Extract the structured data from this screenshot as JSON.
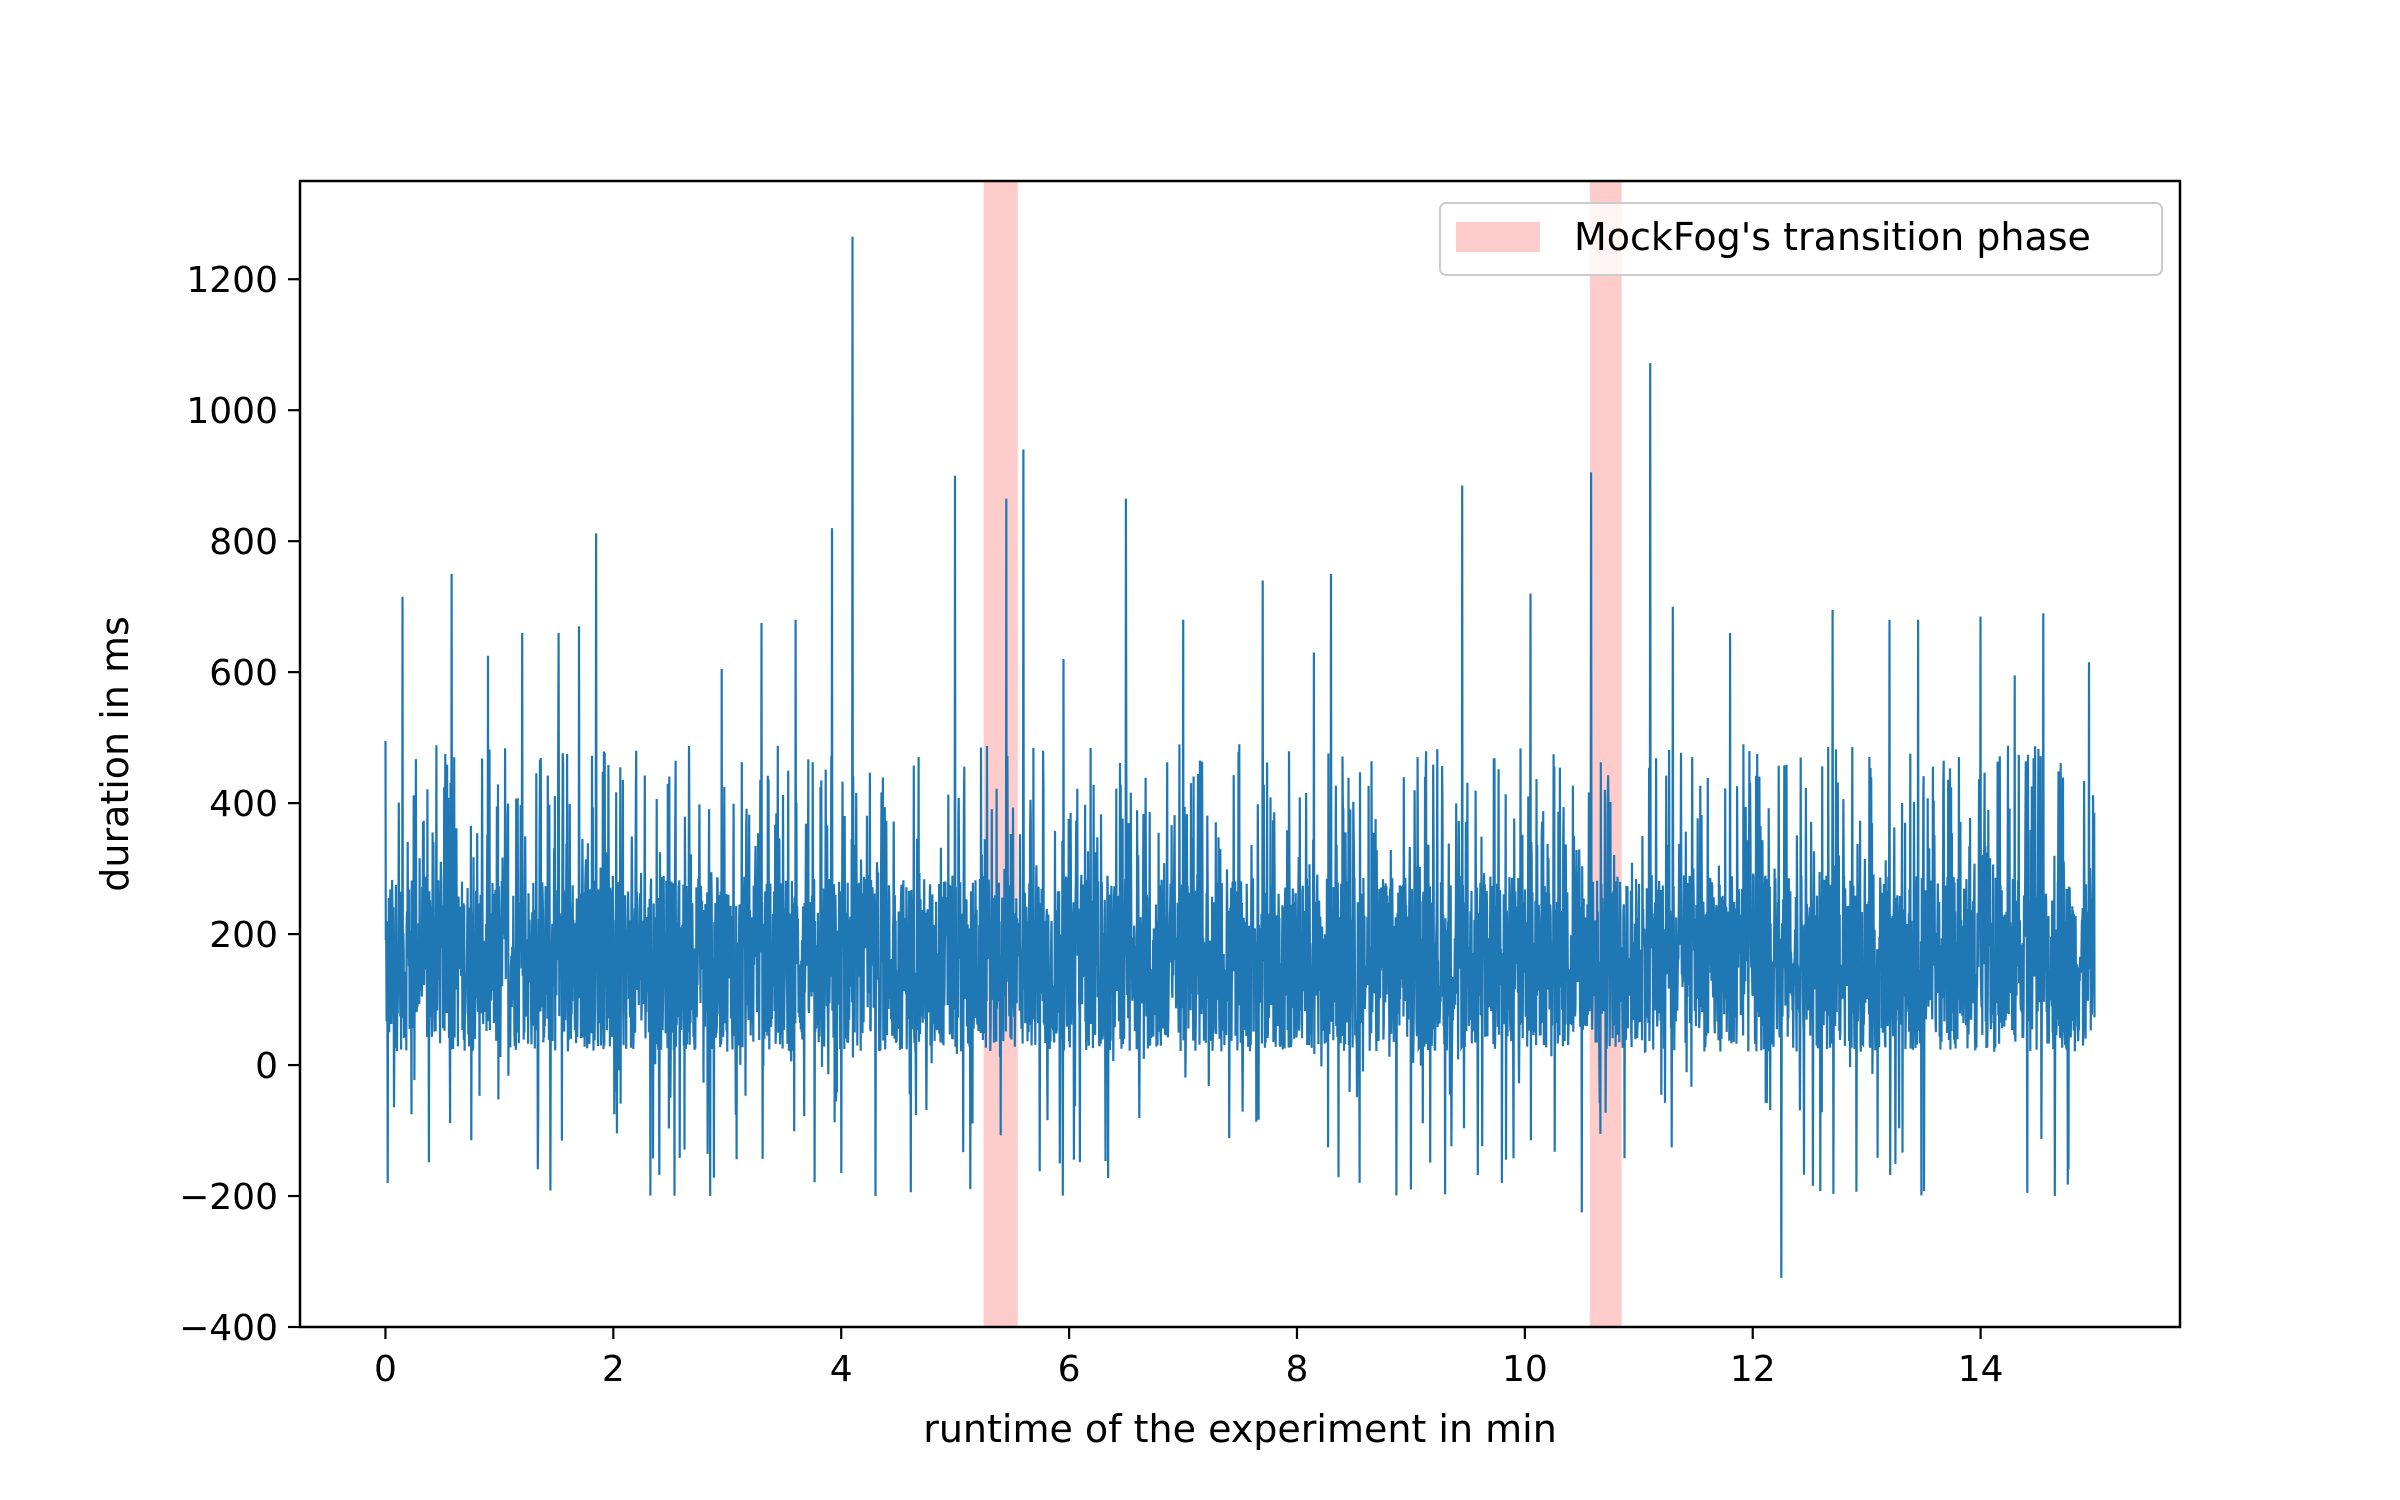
{
  "chart_data": {
    "type": "line",
    "title": "",
    "xlabel": "runtime of the experiment in min",
    "ylabel": "duration in ms",
    "xlim": [
      -0.75,
      15.75
    ],
    "ylim": [
      -400,
      1350
    ],
    "x_ticks": [
      0,
      2,
      4,
      6,
      8,
      10,
      12,
      14
    ],
    "x_tick_labels": [
      "0",
      "2",
      "4",
      "6",
      "8",
      "10",
      "12",
      "14"
    ],
    "y_ticks": [
      -400,
      -200,
      0,
      200,
      400,
      600,
      800,
      1000,
      1200
    ],
    "y_tick_labels": [
      "−400",
      "−200",
      "0",
      "200",
      "400",
      "600",
      "800",
      "1000",
      "1200"
    ],
    "grid": false,
    "legend_position": "top-right",
    "series": [
      {
        "color": "#1f77b4",
        "core_band": [
          20,
          290
        ],
        "x_range": [
          0,
          15
        ],
        "spikes": [
          {
            "x": 0.0,
            "y": 495
          },
          {
            "x": 0.02,
            "y": -180
          },
          {
            "x": 0.15,
            "y": 715
          },
          {
            "x": 0.58,
            "y": 750
          },
          {
            "x": 0.9,
            "y": 625
          },
          {
            "x": 1.2,
            "y": 660
          },
          {
            "x": 1.52,
            "y": 660
          },
          {
            "x": 1.7,
            "y": 670
          },
          {
            "x": 1.85,
            "y": 812
          },
          {
            "x": 2.2,
            "y": 480
          },
          {
            "x": 2.85,
            "y": -200
          },
          {
            "x": 2.95,
            "y": 605
          },
          {
            "x": 3.3,
            "y": 675
          },
          {
            "x": 3.6,
            "y": 680
          },
          {
            "x": 3.92,
            "y": 820
          },
          {
            "x": 4.0,
            "y": -165
          },
          {
            "x": 4.1,
            "y": 1265
          },
          {
            "x": 4.3,
            "y": -200
          },
          {
            "x": 5.0,
            "y": 900
          },
          {
            "x": 5.45,
            "y": 865
          },
          {
            "x": 5.6,
            "y": 940
          },
          {
            "x": 5.95,
            "y": 620
          },
          {
            "x": 6.5,
            "y": 865
          },
          {
            "x": 7.0,
            "y": 680
          },
          {
            "x": 7.7,
            "y": 740
          },
          {
            "x": 8.15,
            "y": 630
          },
          {
            "x": 8.3,
            "y": 750
          },
          {
            "x": 8.55,
            "y": -180
          },
          {
            "x": 9.0,
            "y": -190
          },
          {
            "x": 9.45,
            "y": 885
          },
          {
            "x": 9.8,
            "y": -180
          },
          {
            "x": 10.05,
            "y": 720
          },
          {
            "x": 10.5,
            "y": -225
          },
          {
            "x": 10.58,
            "y": 905
          },
          {
            "x": 11.1,
            "y": 1072
          },
          {
            "x": 11.3,
            "y": 700
          },
          {
            "x": 11.8,
            "y": 660
          },
          {
            "x": 12.25,
            "y": -325
          },
          {
            "x": 12.7,
            "y": 695
          },
          {
            "x": 13.2,
            "y": 680
          },
          {
            "x": 13.45,
            "y": 680
          },
          {
            "x": 14.0,
            "y": 685
          },
          {
            "x": 14.3,
            "y": 595
          },
          {
            "x": 14.55,
            "y": 690
          },
          {
            "x": 14.65,
            "y": -200
          },
          {
            "x": 14.95,
            "y": 615
          }
        ]
      }
    ],
    "highlight_bands": [
      {
        "x_range": [
          5.25,
          5.55
        ],
        "color": "#ffcccc"
      },
      {
        "x_range": [
          10.57,
          10.85
        ],
        "color": "#ffcccc"
      }
    ],
    "legend": [
      {
        "label": "MockFog's transition phase",
        "color": "#ffcccc"
      }
    ]
  }
}
